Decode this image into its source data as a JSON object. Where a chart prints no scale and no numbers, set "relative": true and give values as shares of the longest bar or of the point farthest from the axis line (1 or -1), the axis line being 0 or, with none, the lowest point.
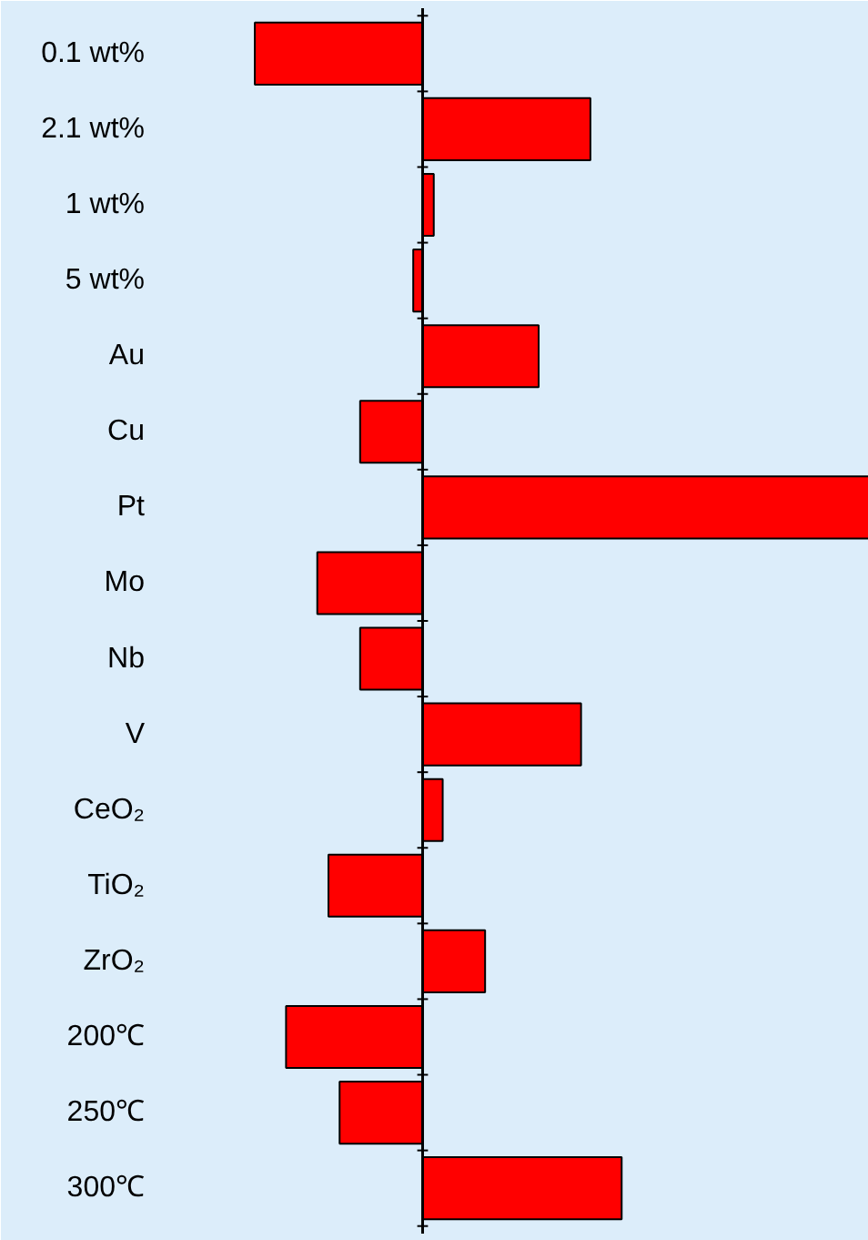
{
  "chart_data": {
    "type": "bar",
    "orientation": "horizontal",
    "relative": true,
    "color": "#ff0000",
    "categories": [
      "0.1 wt%",
      "2.1 wt%",
      "1 wt%",
      "5 wt%",
      "Au",
      "Cu",
      "Pt",
      "Mo",
      "Nb",
      "V",
      "CeO₂",
      "TiO₂",
      "ZrO₂",
      "200℃",
      "250℃",
      "300℃"
    ],
    "values": [
      -0.376,
      0.376,
      0.025,
      -0.021,
      0.26,
      -0.14,
      1,
      -0.236,
      -0.14,
      0.355,
      0.045,
      -0.211,
      0.14,
      -0.306,
      -0.186,
      0.446
    ],
    "grid": false
  }
}
